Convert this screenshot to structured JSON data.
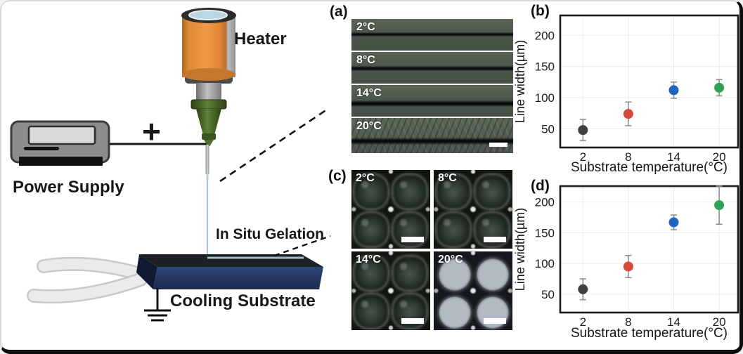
{
  "figure": {
    "diagram": {
      "heater_label": "Heater",
      "power_supply_label": "Power Supply",
      "plus_sign": "+",
      "in_situ_gelation_label": "In Situ Gelation",
      "cooling_substrate_label": "Cooling Substrate"
    },
    "panel_a": {
      "label": "(a)",
      "strips": [
        {
          "temp": "2°C"
        },
        {
          "temp": "8°C"
        },
        {
          "temp": "14°C"
        },
        {
          "temp": "20°C"
        }
      ]
    },
    "panel_c": {
      "label": "(c)",
      "tiles": [
        {
          "temp": "2°C"
        },
        {
          "temp": "8°C"
        },
        {
          "temp": "14°C"
        },
        {
          "temp": "20°C"
        }
      ]
    }
  },
  "chart_data": [
    {
      "id": "b",
      "panel_label": "(b)",
      "type": "scatter",
      "x": [
        2,
        8,
        14,
        20
      ],
      "xticklabels": [
        "2",
        "8",
        "14",
        "20"
      ],
      "series": [
        {
          "name": "line width",
          "values": [
            48,
            74,
            112,
            116
          ],
          "errors": [
            17,
            19,
            13,
            13
          ]
        }
      ],
      "point_colors": [
        "#3d4043",
        "#d8473c",
        "#2163be",
        "#2fa254"
      ],
      "error_color": "#8f8f8f",
      "grid": true,
      "grid_color": "#edebe9",
      "xlabel": "Substrate temperature(°C)",
      "ylabel": "Line width(µm)",
      "yticks": [
        50,
        100,
        150,
        200
      ],
      "ylim": [
        20,
        232
      ],
      "xlim": [
        -1,
        22.5
      ],
      "legend": "none"
    },
    {
      "id": "d",
      "panel_label": "(d)",
      "type": "scatter",
      "x": [
        2,
        8,
        14,
        20
      ],
      "xticklabels": [
        "2",
        "8",
        "14",
        "20"
      ],
      "series": [
        {
          "name": "line width",
          "values": [
            58,
            95,
            167,
            195
          ],
          "errors": [
            17,
            18,
            12,
            31
          ]
        }
      ],
      "point_colors": [
        "#3d4043",
        "#d8473c",
        "#2163be",
        "#2fa254"
      ],
      "error_color": "#8f8f8f",
      "grid": true,
      "grid_color": "#edebe9",
      "xlabel": "Substrate temperature(°C)",
      "ylabel": "Line width(µm)",
      "yticks": [
        50,
        100,
        150,
        200
      ],
      "ylim": [
        20,
        226
      ],
      "xlim": [
        -1,
        22.5
      ],
      "legend": "none"
    }
  ]
}
